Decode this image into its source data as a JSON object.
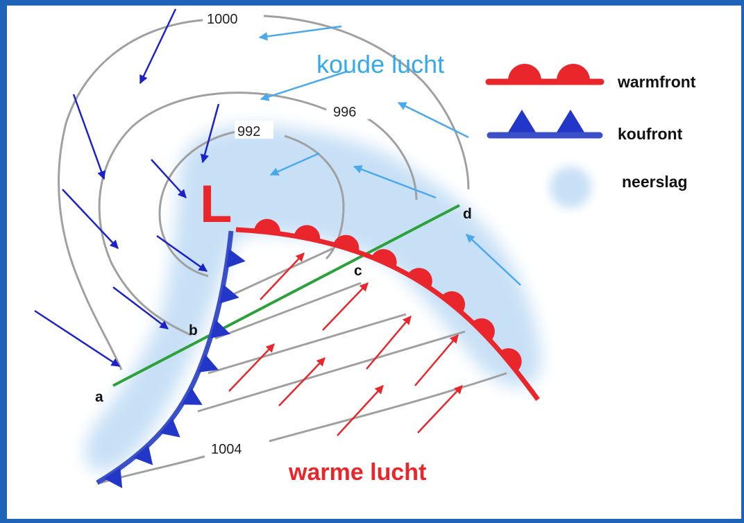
{
  "diagram": {
    "low_symbol": "L",
    "air_masses": {
      "cold": "koude lucht",
      "warm": "warme lucht"
    },
    "isobars": [
      "1000",
      "996",
      "992",
      "1004"
    ],
    "points": [
      "a",
      "b",
      "c",
      "d"
    ],
    "legend": [
      {
        "label": "warmfront",
        "symbol": "warm-front-symbol"
      },
      {
        "label": "koufront",
        "symbol": "cold-front-symbol"
      },
      {
        "label": "neerslag",
        "symbol": "precipitation-symbol"
      }
    ]
  },
  "colors": {
    "frame": "#1e63b8",
    "warm_front": "#e8262b",
    "cold_front": "#3b4fc8",
    "cold_air_arrows": "#4aa8ec",
    "outer_wind_arrows": "#1c22c8",
    "warm_air_arrows": "#e8262b",
    "isobars": "#a0a0a0",
    "cross_section": "#2ca03a",
    "precipitation": "#c8e0f6"
  }
}
